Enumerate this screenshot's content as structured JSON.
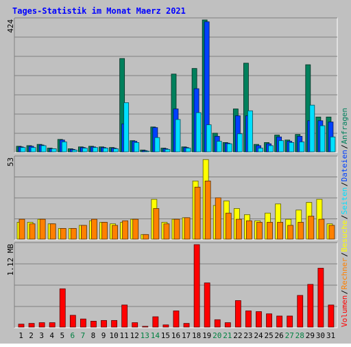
{
  "title": "Tages-Statistik im Monat Maerz 2021",
  "colors": {
    "background": "#c0c0c0",
    "title": "#0000ff",
    "grid": "#808080",
    "anfragen": "#00805c",
    "dateien": "#0040ff",
    "seiten": "#00e0ff",
    "besuche": "#ffff00",
    "rechner": "#ff8000",
    "volumen": "#ff0000",
    "weekend_label": "#008040"
  },
  "chart_data": [
    {
      "type": "bar",
      "panel": "requests",
      "ymax_label": "424",
      "ylim": [
        0,
        424
      ],
      "categories": [
        "1",
        "2",
        "3",
        "4",
        "5",
        "6",
        "7",
        "8",
        "9",
        "10",
        "11",
        "12",
        "13",
        "14",
        "15",
        "16",
        "17",
        "18",
        "19",
        "20",
        "21",
        "22",
        "23",
        "24",
        "25",
        "26",
        "27",
        "28",
        "29",
        "30",
        "31"
      ],
      "weekend_days": [
        "6",
        "7",
        "13",
        "14",
        "20",
        "21",
        "27",
        "28"
      ],
      "series": [
        {
          "name": "Anfragen",
          "values": [
            18,
            20,
            24,
            12,
            40,
            10,
            16,
            18,
            16,
            14,
            300,
            36,
            6,
            80,
            12,
            250,
            16,
            268,
            424,
            60,
            30,
            138,
            285,
            24,
            30,
            54,
            38,
            56,
            280,
            112,
            112
          ]
        },
        {
          "name": "Dateien",
          "values": [
            16,
            18,
            22,
            10,
            38,
            8,
            14,
            16,
            14,
            12,
            90,
            34,
            4,
            78,
            10,
            138,
            14,
            203,
            418,
            50,
            28,
            116,
            116,
            20,
            26,
            48,
            34,
            50,
            100,
            100,
            96
          ]
        },
        {
          "name": "Seiten",
          "values": [
            14,
            14,
            20,
            10,
            32,
            6,
            12,
            14,
            12,
            10,
            158,
            30,
            2,
            46,
            8,
            104,
            12,
            126,
            87,
            34,
            26,
            58,
            132,
            12,
            20,
            36,
            30,
            32,
            150,
            84,
            48
          ]
        }
      ]
    },
    {
      "type": "bar",
      "panel": "visits",
      "ymax_label": "53",
      "ylim": [
        0,
        53
      ],
      "categories": [
        "1",
        "2",
        "3",
        "4",
        "5",
        "6",
        "7",
        "8",
        "9",
        "10",
        "11",
        "12",
        "13",
        "14",
        "15",
        "16",
        "17",
        "18",
        "19",
        "20",
        "21",
        "22",
        "23",
        "24",
        "25",
        "26",
        "27",
        "28",
        "29",
        "30",
        "31"
      ],
      "series": [
        {
          "name": "Besuche",
          "values": [
            11,
            11,
            13,
            10,
            7,
            7,
            9,
            12,
            11,
            10,
            11,
            13,
            3,
            26,
            11,
            13,
            14,
            38,
            52,
            22,
            25,
            20,
            16,
            12,
            17,
            23,
            13,
            19,
            24,
            26,
            10
          ]
        },
        {
          "name": "Rechner",
          "values": [
            13,
            10,
            13,
            10,
            7,
            7,
            9,
            13,
            11,
            9,
            12,
            13,
            3,
            20,
            10,
            13,
            14,
            34,
            38,
            27,
            17,
            13,
            12,
            11,
            11,
            11,
            9,
            11,
            15,
            13,
            9
          ]
        }
      ]
    },
    {
      "type": "bar",
      "panel": "volume",
      "ymax_label": "1.12 MB",
      "ylim": [
        0,
        1.12
      ],
      "categories": [
        "1",
        "2",
        "3",
        "4",
        "5",
        "6",
        "7",
        "8",
        "9",
        "10",
        "11",
        "12",
        "13",
        "14",
        "15",
        "16",
        "17",
        "18",
        "19",
        "20",
        "21",
        "22",
        "23",
        "24",
        "25",
        "26",
        "27",
        "28",
        "29",
        "30",
        "31"
      ],
      "series": [
        {
          "name": "Volumen",
          "values": [
            0.04,
            0.05,
            0.06,
            0.06,
            0.52,
            0.16,
            0.11,
            0.08,
            0.09,
            0.09,
            0.3,
            0.06,
            0.01,
            0.14,
            0.03,
            0.22,
            0.05,
            1.12,
            0.6,
            0.1,
            0.06,
            0.36,
            0.22,
            0.21,
            0.18,
            0.15,
            0.15,
            0.43,
            0.58,
            0.8,
            0.3
          ]
        }
      ]
    }
  ],
  "right_axis_labels": [
    {
      "text": "Anfragen",
      "color_key": "anfragen"
    },
    {
      "text": "Dateien",
      "color_key": "dateien"
    },
    {
      "text": "Seiten",
      "color_key": "seiten"
    },
    {
      "text": "Besuche",
      "color_key": "besuche"
    },
    {
      "text": "Rechner",
      "color_key": "rechner"
    },
    {
      "text": "Volumen",
      "color_key": "volumen"
    }
  ]
}
